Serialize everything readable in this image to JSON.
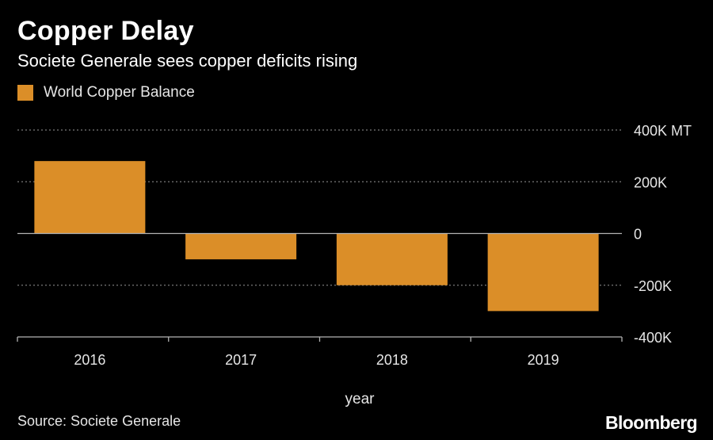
{
  "header": {
    "title": "Copper Delay",
    "subtitle": "Societe Generale sees copper deficits rising"
  },
  "legend": {
    "label": "World Copper Balance"
  },
  "footer": {
    "source": "Source: Societe Generale",
    "brand": "Bloomberg"
  },
  "colors": {
    "background": "#000000",
    "bar": "#db8e28",
    "grid": "#7a7a7a",
    "zero_line": "#b3b3b3",
    "text": "#ffffff"
  },
  "chart_data": {
    "type": "bar",
    "title": "Copper Delay",
    "subtitle": "Societe Generale sees copper deficits rising",
    "categories": [
      "2016",
      "2017",
      "2018",
      "2019"
    ],
    "series": [
      {
        "name": "World Copper Balance",
        "values": [
          280000,
          -100000,
          -200000,
          -300000
        ]
      }
    ],
    "xlabel": "year",
    "ylabel": "",
    "ylim": [
      -400000,
      400000
    ],
    "yticks": [
      400000,
      200000,
      0,
      -200000,
      -400000
    ],
    "ytick_labels": [
      "400K MT",
      "200K",
      "0",
      "-200K",
      "-400K"
    ],
    "grid": true,
    "legend_position": "top-left",
    "axis_position": "right"
  }
}
